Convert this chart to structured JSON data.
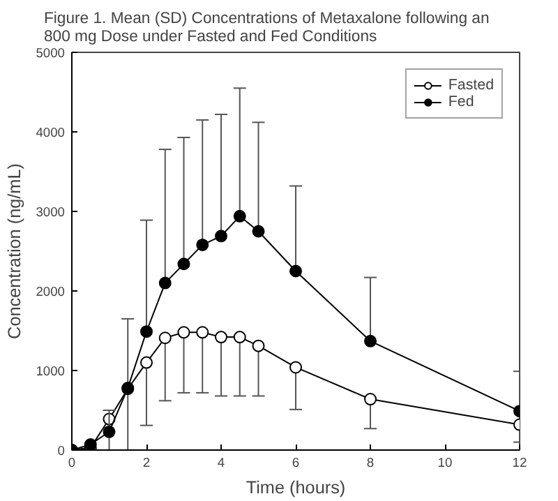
{
  "chart_data": {
    "type": "line",
    "title": "Figure 1.  Mean (SD) Concentrations of Metaxalone following an\n800 mg Dose under Fasted and Fed Conditions",
    "xlabel": "Time (hours)",
    "ylabel": "Concentration (ng/mL)",
    "x": [
      0,
      0.5,
      1,
      1.5,
      2,
      2.5,
      3,
      3.5,
      4,
      4.5,
      5,
      6,
      8,
      12
    ],
    "series": [
      {
        "name": "Fasted",
        "color": "#000000",
        "marker": "circle",
        "values": [
          0,
          30,
          390,
          770,
          1100,
          1410,
          1480,
          1480,
          1420,
          1420,
          1310,
          1040,
          640,
          320
        ],
        "errors": [
          null,
          null,
          [
            0,
            390
          ],
          [
            0,
            770
          ],
          [
            310,
            1100
          ],
          [
            620,
            1410
          ],
          [
            720,
            1480
          ],
          [
            720,
            1480
          ],
          [
            680,
            1420
          ],
          [
            680,
            1420
          ],
          [
            680,
            1310
          ],
          [
            510,
            1040
          ],
          [
            270,
            640
          ],
          [
            100,
            320
          ]
        ]
      },
      {
        "name": "Fed",
        "color": "#000000",
        "marker": "circle",
        "values": [
          0,
          70,
          230,
          780,
          1490,
          2100,
          2340,
          2580,
          2690,
          2940,
          2750,
          2250,
          1370,
          490
        ],
        "errors": [
          null,
          null,
          [
            230,
            500
          ],
          [
            780,
            1650
          ],
          [
            1490,
            2890
          ],
          [
            2100,
            3780
          ],
          [
            2340,
            3930
          ],
          [
            2580,
            4150
          ],
          [
            2690,
            4220
          ],
          [
            2940,
            4550
          ],
          [
            2750,
            4120
          ],
          [
            2250,
            3320
          ],
          [
            1370,
            2170
          ],
          [
            490,
            990
          ]
        ]
      }
    ],
    "xlim": [
      0,
      12
    ],
    "ylim": [
      0,
      5000
    ],
    "xticks": [
      0,
      2,
      4,
      6,
      8,
      10,
      12
    ],
    "yticks": [
      0,
      1000,
      2000,
      3000,
      4000,
      5000
    ],
    "grid": false,
    "legend": "top right"
  }
}
